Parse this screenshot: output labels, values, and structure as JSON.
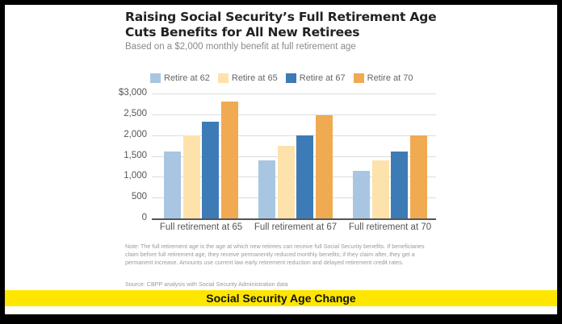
{
  "title_line1": "Raising Social Security’s Full Retirement Age",
  "title_line2": "Cuts Benefits for All New Retirees",
  "subtitle": "Based on a $2,000 monthly benefit at full retirement age",
  "legend": [
    {
      "label": "Retire at 62",
      "color": "#a8c6e1"
    },
    {
      "label": "Retire at 65",
      "color": "#fde2ac"
    },
    {
      "label": "Retire at 67",
      "color": "#3d7bb6"
    },
    {
      "label": "Retire at 70",
      "color": "#f0aa52"
    }
  ],
  "yticks": [
    "$3,000",
    "2,500",
    "2,000",
    "1,500",
    "1,000",
    "500",
    "0"
  ],
  "xlabels": [
    "Full retirement at 65",
    "Full retirement at 67",
    "Full retirement at 70"
  ],
  "note": "Note: The full retirement age is the age at which new retirees can receive full Social Security benefits. If beneficiaries claim before full retirement age, they receive permanently reduced monthly benefits; if they claim after, they get a permanent increase. Amounts use current law early retirement reduction and delayed retirement credit rates.",
  "source": "Source: CBPP analysis with Social Security Administration data",
  "caption": "Social Security Age Change",
  "chart_data": {
    "type": "bar",
    "title": "Raising Social Security’s Full Retirement Age Cuts Benefits for All New Retirees",
    "subtitle": "Based on a $2,000 monthly benefit at full retirement age",
    "xlabel": "",
    "ylabel": "",
    "ylim": [
      0,
      3000
    ],
    "yticks": [
      0,
      500,
      1000,
      1500,
      2000,
      2500,
      3000
    ],
    "grid": true,
    "legend_position": "top",
    "categories": [
      "Full retirement at 65",
      "Full retirement at 67",
      "Full retirement at 70"
    ],
    "series": [
      {
        "name": "Retire at 62",
        "values": [
          1600,
          1400,
          1140
        ]
      },
      {
        "name": "Retire at 65",
        "values": [
          2000,
          1733,
          1400
        ]
      },
      {
        "name": "Retire at 67",
        "values": [
          2320,
          2000,
          1600
        ]
      },
      {
        "name": "Retire at 70",
        "values": [
          2800,
          2480,
          2000
        ]
      }
    ]
  }
}
